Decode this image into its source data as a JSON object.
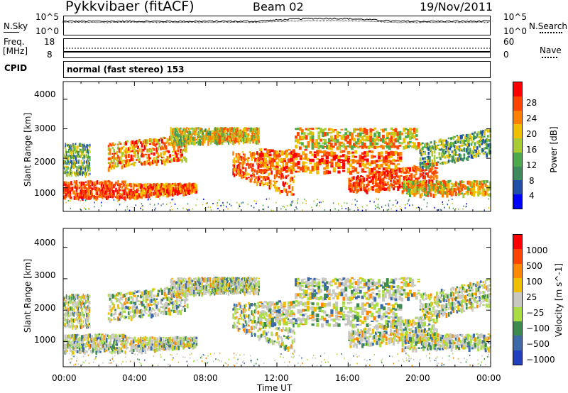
{
  "header": {
    "radar": "Pykkvibaer (fitACF)",
    "beam": "Beam 02",
    "date": "19/Nov/2011"
  },
  "noise_panel": {
    "left_label": "N.Sky",
    "left_ticks": [
      "10^5",
      "10^0"
    ],
    "right_ticks": [
      "10^5",
      "10^0"
    ],
    "right_label": "N.Search"
  },
  "freq_panel": {
    "left_label_1": "Freq.",
    "left_label_2": "[MHz]",
    "left_ticks": [
      "18",
      "8"
    ],
    "right_ticks": [
      "60",
      "0"
    ],
    "right_label": "Nave"
  },
  "cpid": {
    "label": "CPID",
    "value": "normal (fast stereo) 153"
  },
  "axes": {
    "ylabel": "Slant Range [km]",
    "yticks": [
      "4000",
      "3000",
      "2000",
      "1000"
    ],
    "xlabel": "Time UT",
    "xticks": [
      "00:00",
      "04:00",
      "08:00",
      "12:00",
      "16:00",
      "20:00",
      "00:00"
    ]
  },
  "colors": {
    "power": [
      "#0000ff",
      "#1f4fa8",
      "#3d8a5e",
      "#4caa4c",
      "#aacc33",
      "#f0c000",
      "#ff8000",
      "#ff4400",
      "#ff0000"
    ],
    "velocity": [
      "#ff0000",
      "#ff4400",
      "#ff8800",
      "#f0c000",
      "#c8c8c0",
      "#aadd44",
      "#3d8a4e",
      "#3d6aa8",
      "#2040c0"
    ]
  },
  "chart_data": [
    {
      "type": "heatmap",
      "title": "",
      "xlabel": "Time UT",
      "ylabel": "Slant Range [km]",
      "colorbar_label": "Power [dB]",
      "colorbar_ticks": [
        "28",
        "24",
        "20",
        "16",
        "12",
        "8",
        "4"
      ],
      "xlim": [
        "00:00",
        "24:00"
      ],
      "ylim": [
        200,
        4600
      ]
    },
    {
      "type": "heatmap",
      "title": "",
      "xlabel": "Time UT",
      "ylabel": "Slant Range [km]",
      "colorbar_label": "Velocity [m s^-1]",
      "colorbar_ticks": [
        "1000",
        "500",
        "100",
        "25",
        "−25",
        "−100",
        "−500",
        "−1000"
      ],
      "xlim": [
        "00:00",
        "24:00"
      ],
      "ylim": [
        200,
        4600
      ]
    }
  ]
}
